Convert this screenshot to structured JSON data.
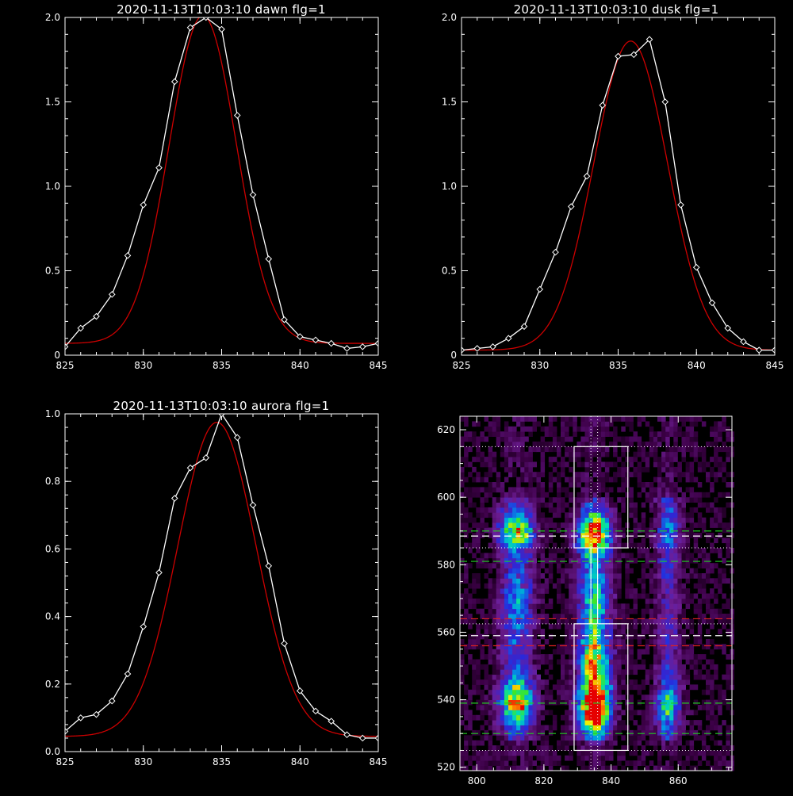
{
  "chart_data": [
    {
      "type": "line",
      "title": "2020-11-13T10:03:10 dawn flg=1",
      "xlim": [
        825,
        845
      ],
      "ylim": [
        0,
        2.0
      ],
      "xticks": [
        "825",
        "830",
        "835",
        "840",
        "845"
      ],
      "yticks": [
        "0",
        "0.5",
        "1.0",
        "1.5",
        "2.0"
      ],
      "grid": false,
      "series": [
        {
          "color": "#ffffff",
          "marker": "diamond",
          "x": [
            825,
            826,
            827,
            828,
            829,
            830,
            831,
            832,
            833,
            834,
            835,
            836,
            837,
            838,
            839,
            840,
            841,
            842,
            843,
            844,
            845
          ],
          "y": [
            0.05,
            0.16,
            0.23,
            0.36,
            0.59,
            0.89,
            1.11,
            1.62,
            1.94,
            2.0,
            1.93,
            1.42,
            0.95,
            0.57,
            0.21,
            0.11,
            0.09,
            0.07,
            0.04,
            0.05,
            0.07
          ]
        },
        {
          "color": "#cc0000",
          "marker": "none",
          "fit": {
            "a": 1.94,
            "mu": 833.8,
            "sigma": 2.15,
            "c": 0.07
          }
        }
      ]
    },
    {
      "type": "line",
      "title": "2020-11-13T10:03:10 dusk flg=1",
      "xlim": [
        825,
        845
      ],
      "ylim": [
        0,
        2.0
      ],
      "xticks": [
        "825",
        "830",
        "835",
        "840",
        "845"
      ],
      "yticks": [
        "0",
        "0.5",
        "1.0",
        "1.5",
        "2.0"
      ],
      "grid": false,
      "series": [
        {
          "color": "#ffffff",
          "marker": "diamond",
          "x": [
            825,
            826,
            827,
            828,
            829,
            830,
            831,
            832,
            833,
            834,
            835,
            836,
            837,
            838,
            839,
            840,
            841,
            842,
            843,
            844,
            845
          ],
          "y": [
            0.03,
            0.04,
            0.05,
            0.1,
            0.17,
            0.39,
            0.61,
            0.88,
            1.06,
            1.48,
            1.77,
            1.78,
            1.87,
            1.5,
            0.89,
            0.52,
            0.31,
            0.16,
            0.08,
            0.03,
            0.03
          ]
        },
        {
          "color": "#cc0000",
          "marker": "none",
          "fit": {
            "a": 1.83,
            "mu": 835.8,
            "sigma": 2.35,
            "c": 0.03
          }
        }
      ]
    },
    {
      "type": "line",
      "title": "2020-11-13T10:03:10 aurora flg=1",
      "xlim": [
        825,
        845
      ],
      "ylim": [
        0,
        1.0
      ],
      "xticks": [
        "825",
        "830",
        "835",
        "840",
        "845"
      ],
      "yticks": [
        "0.0",
        "0.2",
        "0.4",
        "0.6",
        "0.8",
        "1.0"
      ],
      "grid": false,
      "series": [
        {
          "color": "#ffffff",
          "marker": "diamond",
          "x": [
            825,
            826,
            827,
            828,
            829,
            830,
            831,
            832,
            833,
            834,
            835,
            836,
            837,
            838,
            839,
            840,
            841,
            842,
            843,
            844,
            845
          ],
          "y": [
            0.06,
            0.1,
            0.11,
            0.15,
            0.23,
            0.37,
            0.53,
            0.75,
            0.84,
            0.87,
            1.0,
            0.93,
            0.73,
            0.55,
            0.32,
            0.18,
            0.12,
            0.09,
            0.05,
            0.04,
            0.04
          ]
        },
        {
          "color": "#cc0000",
          "marker": "none",
          "fit": {
            "a": 0.93,
            "mu": 834.7,
            "sigma": 2.5,
            "c": 0.045
          }
        }
      ]
    },
    {
      "type": "heatmap",
      "title": "",
      "xlim": [
        795,
        876
      ],
      "ylim": [
        519,
        624
      ],
      "xticks": [
        "800",
        "820",
        "840",
        "860"
      ],
      "yticks": [
        "520",
        "540",
        "560",
        "580",
        "600",
        "620"
      ],
      "colormap": "rainbow",
      "emission_columns": [
        {
          "x_center": 812,
          "width": 3.5,
          "bands": [
            {
              "y": 590,
              "amp": 0.55,
              "w": 4
            },
            {
              "y": 540,
              "amp": 0.6,
              "w": 5
            },
            {
              "y": 568,
              "amp": 0.2,
              "w": 8
            }
          ]
        },
        {
          "x_center": 835,
          "width": 3.2,
          "bands": [
            {
              "y": 589,
              "amp": 0.85,
              "w": 4
            },
            {
              "y": 538,
              "amp": 1.0,
              "w": 5
            },
            {
              "y": 552,
              "amp": 0.55,
              "w": 6
            },
            {
              "y": 570,
              "amp": 0.35,
              "w": 8
            }
          ]
        },
        {
          "x_center": 857,
          "width": 2.5,
          "bands": [
            {
              "y": 538,
              "amp": 0.35,
              "w": 5
            },
            {
              "y": 590,
              "amp": 0.15,
              "w": 6
            }
          ]
        }
      ],
      "boxes": [
        {
          "x0": 829,
          "x1": 845,
          "y0": 585,
          "y1": 615,
          "color": "#ffffff"
        },
        {
          "x0": 829,
          "x1": 845,
          "y0": 525,
          "y1": 562.5,
          "color": "#ffffff"
        }
      ],
      "vertical_lines": [
        {
          "x": 834,
          "style": "dotted",
          "color": "#ffffff"
        },
        {
          "x": 836,
          "style": "dotted",
          "color": "#ffffff"
        }
      ],
      "dotted_hlines": [
        615,
        585,
        562.5,
        525
      ],
      "dashed_hlines": [
        {
          "y": 590,
          "color": "#22cc22"
        },
        {
          "y": 588.5,
          "color": "#ffffff"
        },
        {
          "y": 581,
          "color": "#22cc22"
        },
        {
          "y": 564,
          "color": "#dd2222"
        },
        {
          "y": 559,
          "color": "#ffffff"
        },
        {
          "y": 556,
          "color": "#dd2222"
        },
        {
          "y": 539,
          "color": "#22cc22"
        },
        {
          "y": 530,
          "color": "#22cc22"
        }
      ]
    }
  ]
}
